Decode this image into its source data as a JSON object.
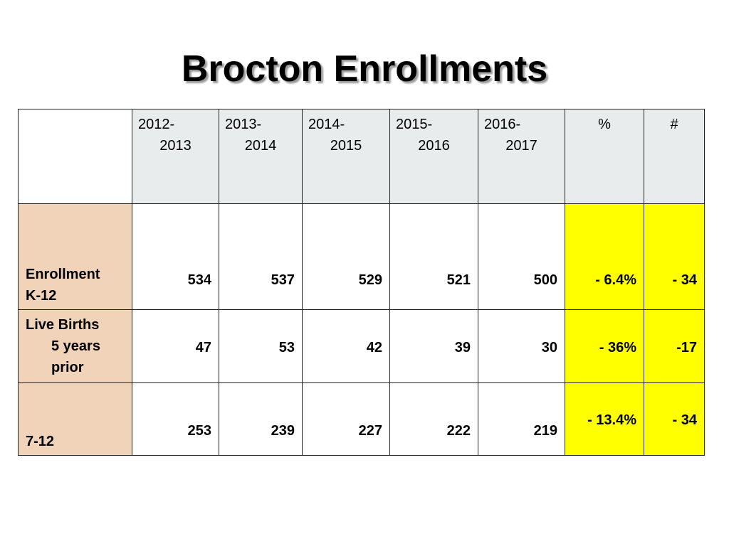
{
  "title": "Brocton Enrollments",
  "table": {
    "headers": [
      {
        "line1": "2012-",
        "line2": "2013"
      },
      {
        "line1": "2013-",
        "line2": "2014"
      },
      {
        "line1": "2014-",
        "line2": "2015"
      },
      {
        "line1": "2015-",
        "line2": "2016"
      },
      {
        "line1": "2016-",
        "line2": "2017"
      }
    ],
    "pct_header": "%",
    "num_header": "#",
    "rows": [
      {
        "label_line1": "Enrollment",
        "label_line2": "K-12",
        "values": [
          "534",
          "537",
          "529",
          "521",
          "500"
        ],
        "pct": "- 6.4%",
        "num": "- 34"
      },
      {
        "label_line1": "Live Births",
        "label_line2": "5 years",
        "label_line3": "prior",
        "values": [
          "47",
          "53",
          "42",
          "39",
          "30"
        ],
        "pct": "- 36%",
        "num": "-17"
      },
      {
        "label_line1": "7-12",
        "values": [
          "253",
          "239",
          "227",
          "222",
          "219"
        ],
        "pct": "- 13.4%",
        "num": "- 34"
      }
    ]
  },
  "colors": {
    "header_bg": "#e8ecec",
    "label_bg": "#f0d3b8",
    "highlight_bg": "#ffff00"
  }
}
